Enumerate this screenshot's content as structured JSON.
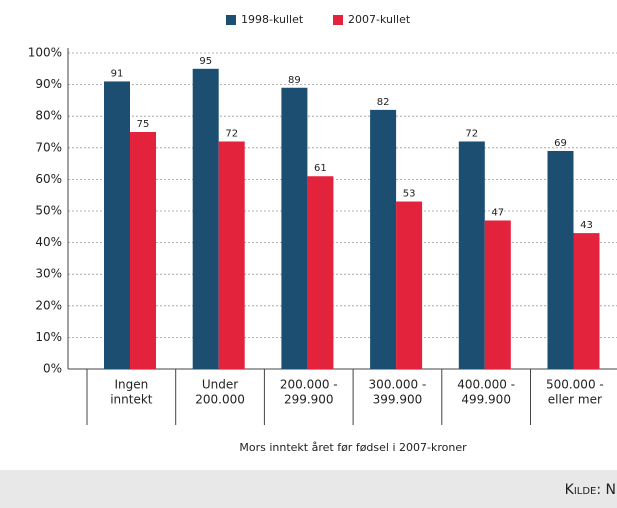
{
  "chart_data": {
    "type": "bar",
    "categories": [
      [
        "Ingen",
        "inntekt"
      ],
      [
        "Under",
        "200.000"
      ],
      [
        "200.000 -",
        "299.900"
      ],
      [
        "300.000 -",
        "399.900"
      ],
      [
        "400.000 -",
        "499.900"
      ],
      [
        "500.000 -",
        "eller mer"
      ]
    ],
    "series": [
      {
        "name": "1998-kullet",
        "color": "#1b4e71",
        "values": [
          91,
          95,
          89,
          82,
          72,
          69
        ]
      },
      {
        "name": "2007-kullet",
        "color": "#e2233b",
        "values": [
          75,
          72,
          61,
          53,
          47,
          43
        ]
      }
    ],
    "ylim": [
      0,
      100
    ],
    "yticks": [
      {
        "value": 0,
        "label": "0%"
      },
      {
        "value": 10,
        "label": "10%"
      },
      {
        "value": 20,
        "label": "20%"
      },
      {
        "value": 30,
        "label": "30%"
      },
      {
        "value": 40,
        "label": "40%"
      },
      {
        "value": 50,
        "label": "50%"
      },
      {
        "value": 60,
        "label": "60%"
      },
      {
        "value": 70,
        "label": "70%"
      },
      {
        "value": 80,
        "label": "80%"
      },
      {
        "value": 90,
        "label": "90%"
      },
      {
        "value": 100,
        "label": "100%"
      }
    ],
    "grid": true,
    "xlabel": "Mors inntekt året før fødsel i 2007-kroner",
    "source": "Kilde: N"
  }
}
